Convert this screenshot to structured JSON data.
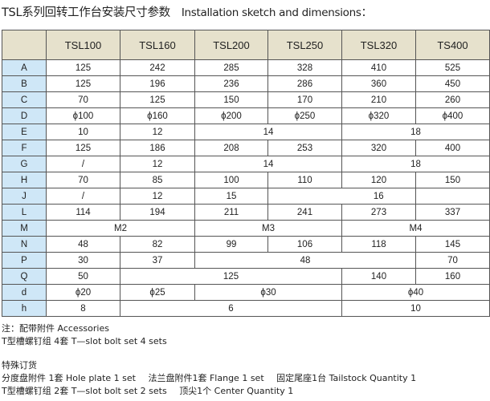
{
  "title": {
    "cn": "TSL系列回转工作台安装尺寸参数",
    "en": "Installation sketch and dimensions："
  },
  "table": {
    "headers": [
      "",
      "TSL100",
      "TSL160",
      "TSL200",
      "TSL250",
      "TSL320",
      "TS400"
    ],
    "rows": [
      {
        "label": "A",
        "cells": [
          {
            "v": "125"
          },
          {
            "v": "242"
          },
          {
            "v": "285"
          },
          {
            "v": "328"
          },
          {
            "v": "410"
          },
          {
            "v": "525"
          }
        ]
      },
      {
        "label": "B",
        "cells": [
          {
            "v": "125"
          },
          {
            "v": "196"
          },
          {
            "v": "236"
          },
          {
            "v": "286"
          },
          {
            "v": "360"
          },
          {
            "v": "450"
          }
        ]
      },
      {
        "label": "C",
        "cells": [
          {
            "v": "70"
          },
          {
            "v": "125"
          },
          {
            "v": "150"
          },
          {
            "v": "170"
          },
          {
            "v": "210"
          },
          {
            "v": "260"
          }
        ]
      },
      {
        "label": "D",
        "cells": [
          {
            "v": "ϕ100"
          },
          {
            "v": "ϕ160"
          },
          {
            "v": "ϕ200"
          },
          {
            "v": "ϕ250"
          },
          {
            "v": "ϕ320"
          },
          {
            "v": "ϕ400"
          }
        ]
      },
      {
        "label": "E",
        "cells": [
          {
            "v": "10"
          },
          {
            "v": "12"
          },
          {
            "v": "14",
            "span": 2
          },
          {
            "v": "18",
            "span": 2
          }
        ]
      },
      {
        "label": "F",
        "cells": [
          {
            "v": "125"
          },
          {
            "v": "186"
          },
          {
            "v": "208"
          },
          {
            "v": "253"
          },
          {
            "v": "320"
          },
          {
            "v": "400"
          }
        ]
      },
      {
        "label": "G",
        "cells": [
          {
            "v": "/"
          },
          {
            "v": "12"
          },
          {
            "v": "14",
            "span": 2
          },
          {
            "v": "18",
            "span": 2
          }
        ]
      },
      {
        "label": "H",
        "cells": [
          {
            "v": "70"
          },
          {
            "v": "85"
          },
          {
            "v": "100"
          },
          {
            "v": "110"
          },
          {
            "v": "120"
          },
          {
            "v": "150"
          }
        ]
      },
      {
        "label": "J",
        "cells": [
          {
            "v": "/"
          },
          {
            "v": "12"
          },
          {
            "v": "15"
          },
          {
            "v": "16",
            "span": 2,
            "offset": true
          },
          {
            "v": ""
          }
        ]
      },
      {
        "label": "L",
        "cells": [
          {
            "v": "114"
          },
          {
            "v": "194"
          },
          {
            "v": "211"
          },
          {
            "v": "241"
          },
          {
            "v": "273"
          },
          {
            "v": "337"
          }
        ]
      },
      {
        "label": "M",
        "cells": [
          {
            "v": "M2",
            "span": 2
          },
          {
            "v": "M3",
            "span": 2
          },
          {
            "v": "M4",
            "span": 2
          }
        ]
      },
      {
        "label": "N",
        "cells": [
          {
            "v": "48"
          },
          {
            "v": "82"
          },
          {
            "v": "99"
          },
          {
            "v": "106"
          },
          {
            "v": "118"
          },
          {
            "v": "145"
          }
        ]
      },
      {
        "label": "P",
        "cells": [
          {
            "v": "30"
          },
          {
            "v": "37"
          },
          {
            "v": "48",
            "span": 3
          },
          {
            "v": "70"
          }
        ]
      },
      {
        "label": "Q",
        "cells": [
          {
            "v": "50"
          },
          {
            "v": "125",
            "span": 3
          },
          {
            "v": "140"
          },
          {
            "v": "160"
          }
        ]
      },
      {
        "label": "d",
        "cells": [
          {
            "v": "ϕ20"
          },
          {
            "v": "ϕ25"
          },
          {
            "v": "ϕ30",
            "span": 2
          },
          {
            "v": "ϕ40",
            "span": 2
          }
        ]
      },
      {
        "label": "h",
        "cells": [
          {
            "v": "8"
          },
          {
            "v": "6",
            "span": 3
          },
          {
            "v": "10",
            "span": 2
          }
        ]
      }
    ]
  },
  "notes": {
    "accessories_title": "注：配带附件 Accessories",
    "accessories_line": "T型槽螺钉组 4套   T—slot bolt set 4 sets",
    "special_title": "特殊订货",
    "special_line1": [
      "分度盘附件 1套  Hole plate 1 set",
      "法兰盘附件1套 Flange 1 set",
      "固定尾座1台 Tailstock Quantity 1"
    ],
    "special_line2": [
      "T型槽螺钉组 2套  T—slot bolt set 2 sets",
      "顶尖1个 Center Quantity 1"
    ]
  },
  "colors": {
    "header_bg": "#e6e1cc",
    "label_bg": "#cfe7f7",
    "border": "#555555"
  }
}
